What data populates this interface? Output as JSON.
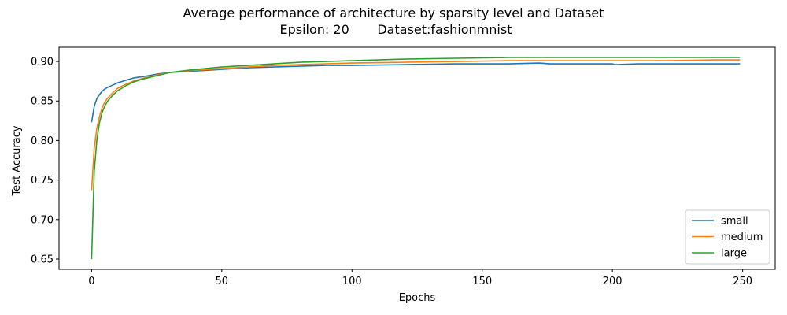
{
  "chart_data": {
    "type": "line",
    "title": "Average performance of architecture by sparsity level and Dataset",
    "subtitle": "Epsilon: 20       Dataset:fashionmnist",
    "xlabel": "Epochs",
    "ylabel": "Test Accuracy",
    "xlim": [
      -12.5,
      262.5
    ],
    "ylim": [
      0.637,
      0.918
    ],
    "xticks": [
      0,
      50,
      100,
      150,
      200,
      250
    ],
    "yticks": [
      0.65,
      0.7,
      0.75,
      0.8,
      0.85,
      0.9
    ],
    "ytick_labels": [
      "0.65",
      "0.70",
      "0.75",
      "0.80",
      "0.85",
      "0.90"
    ],
    "grid": false,
    "legend_position": "lower-right",
    "series": [
      {
        "name": "small",
        "color": "#1f77b4",
        "x": [
          0,
          1,
          2,
          3,
          4,
          5,
          6,
          8,
          10,
          13,
          16,
          20,
          25,
          30,
          40,
          50,
          60,
          70,
          80,
          90,
          100,
          120,
          140,
          160,
          172,
          176,
          180,
          190,
          200,
          201,
          210,
          220,
          230,
          240,
          249
        ],
        "y": [
          0.823,
          0.843,
          0.853,
          0.858,
          0.862,
          0.865,
          0.867,
          0.87,
          0.873,
          0.876,
          0.879,
          0.881,
          0.884,
          0.886,
          0.888,
          0.89,
          0.892,
          0.893,
          0.894,
          0.895,
          0.895,
          0.896,
          0.897,
          0.897,
          0.898,
          0.897,
          0.897,
          0.897,
          0.897,
          0.896,
          0.897,
          0.897,
          0.897,
          0.897,
          0.897
        ]
      },
      {
        "name": "medium",
        "color": "#ff7f0e",
        "x": [
          0,
          1,
          2,
          3,
          4,
          5,
          6,
          8,
          10,
          13,
          16,
          20,
          25,
          30,
          40,
          50,
          60,
          70,
          80,
          90,
          100,
          120,
          140,
          160,
          180,
          200,
          220,
          240,
          249
        ],
        "y": [
          0.737,
          0.79,
          0.815,
          0.83,
          0.841,
          0.848,
          0.853,
          0.86,
          0.866,
          0.871,
          0.875,
          0.879,
          0.883,
          0.886,
          0.889,
          0.891,
          0.893,
          0.895,
          0.896,
          0.897,
          0.898,
          0.899,
          0.9,
          0.901,
          0.901,
          0.901,
          0.901,
          0.902,
          0.902
        ]
      },
      {
        "name": "large",
        "color": "#2ca02c",
        "x": [
          0,
          1,
          2,
          3,
          4,
          5,
          6,
          8,
          10,
          13,
          16,
          20,
          25,
          30,
          40,
          50,
          60,
          70,
          80,
          90,
          100,
          120,
          140,
          160,
          180,
          200,
          220,
          240,
          249
        ],
        "y": [
          0.65,
          0.76,
          0.8,
          0.822,
          0.835,
          0.843,
          0.849,
          0.857,
          0.863,
          0.869,
          0.874,
          0.878,
          0.882,
          0.886,
          0.89,
          0.893,
          0.895,
          0.897,
          0.899,
          0.9,
          0.901,
          0.903,
          0.904,
          0.905,
          0.905,
          0.905,
          0.905,
          0.905,
          0.905
        ]
      }
    ]
  }
}
